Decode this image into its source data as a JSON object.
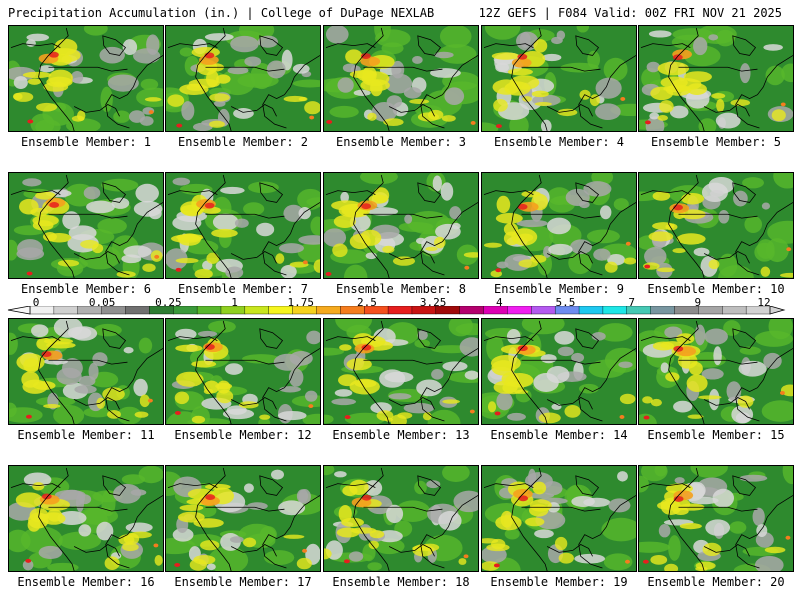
{
  "header": {
    "left": "Precipitation Accumulation (in.) | College of DuPage NEXLAB",
    "right": "12Z GEFS | F084 Valid: 00Z FRI NOV 21 2025"
  },
  "colorbar": {
    "tick_labels": [
      "0",
      "0.05",
      "0.25",
      "1",
      "1.75",
      "2.5",
      "3.25",
      "4",
      "5.5",
      "7",
      "9",
      "12"
    ],
    "colors": [
      "#f0f0f0",
      "#d0d0d0",
      "#b0b0b0",
      "#909090",
      "#707070",
      "#2e7d32",
      "#3a9a3a",
      "#58b82c",
      "#90d020",
      "#c8e61e",
      "#f5f51e",
      "#f5d21e",
      "#f5aa1e",
      "#f57d1e",
      "#f5501e",
      "#e61e1e",
      "#c81414",
      "#a00a0a",
      "#b4006e",
      "#dc00b4",
      "#f01ef0",
      "#b45af0",
      "#6e8cf0",
      "#1ec8f0",
      "#1ee6e6",
      "#46c8b4",
      "#7896a0",
      "#8c8c8c",
      "#a5a5a5",
      "#bebebe",
      "#d2d2d2"
    ]
  },
  "panels": [
    {
      "caption": "Ensemble Member: 1"
    },
    {
      "caption": "Ensemble Member: 2"
    },
    {
      "caption": "Ensemble Member: 3"
    },
    {
      "caption": "Ensemble Member: 4"
    },
    {
      "caption": "Ensemble Member: 5"
    },
    {
      "caption": "Ensemble Member: 6"
    },
    {
      "caption": "Ensemble Member: 7"
    },
    {
      "caption": "Ensemble Member: 8"
    },
    {
      "caption": "Ensemble Member: 9"
    },
    {
      "caption": "Ensemble Member: 10"
    },
    {
      "caption": "Ensemble Member: 11"
    },
    {
      "caption": "Ensemble Member: 12"
    },
    {
      "caption": "Ensemble Member: 13"
    },
    {
      "caption": "Ensemble Member: 14"
    },
    {
      "caption": "Ensemble Member: 15"
    },
    {
      "caption": "Ensemble Member: 16"
    },
    {
      "caption": "Ensemble Member: 17"
    },
    {
      "caption": "Ensemble Member: 18"
    },
    {
      "caption": "Ensemble Member: 19"
    },
    {
      "caption": "Ensemble Member: 20"
    }
  ]
}
